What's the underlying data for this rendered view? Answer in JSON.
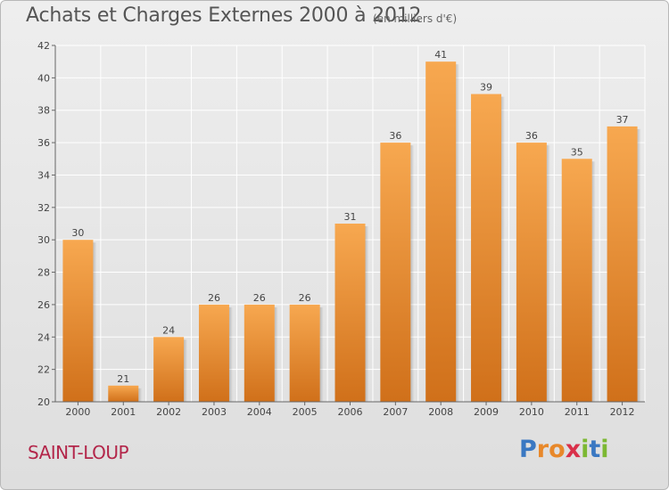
{
  "header": {
    "title": "Achats et Charges Externes 2000 à 2012",
    "subtitle": "(en milliers d'€)"
  },
  "footer": {
    "city": "SAINT-LOUP",
    "logo": {
      "text": "Proxiti",
      "letters": [
        {
          "char": "P",
          "color": "#3a78c2"
        },
        {
          "char": "r",
          "color": "#e8882a"
        },
        {
          "char": "o",
          "color": "#e8882a"
        },
        {
          "char": "x",
          "color": "#d9304a"
        },
        {
          "char": "i",
          "color": "#7cb833"
        },
        {
          "char": "t",
          "color": "#3a78c2"
        },
        {
          "char": "i",
          "color": "#7cb833"
        }
      ]
    }
  },
  "colors": {
    "bar_top": "#f7a850",
    "bar_bottom": "#d0701a",
    "grid": "#ffffff",
    "axis": "#666666",
    "text": "#444444"
  },
  "chart_data": {
    "type": "bar",
    "categories": [
      "2000",
      "2001",
      "2002",
      "2003",
      "2004",
      "2005",
      "2006",
      "2007",
      "2008",
      "2009",
      "2010",
      "2011",
      "2012"
    ],
    "values": [
      30,
      21,
      24,
      26,
      26,
      26,
      31,
      36,
      41,
      39,
      36,
      35,
      37
    ],
    "data_labels": [
      "30",
      "21",
      "24",
      "26",
      "26",
      "26",
      "31",
      "36",
      "41",
      "39",
      "36",
      "35",
      "37"
    ],
    "ylim": [
      20,
      42
    ],
    "yticks": [
      20,
      22,
      24,
      26,
      28,
      30,
      32,
      34,
      36,
      38,
      40,
      42
    ],
    "grid": true
  }
}
